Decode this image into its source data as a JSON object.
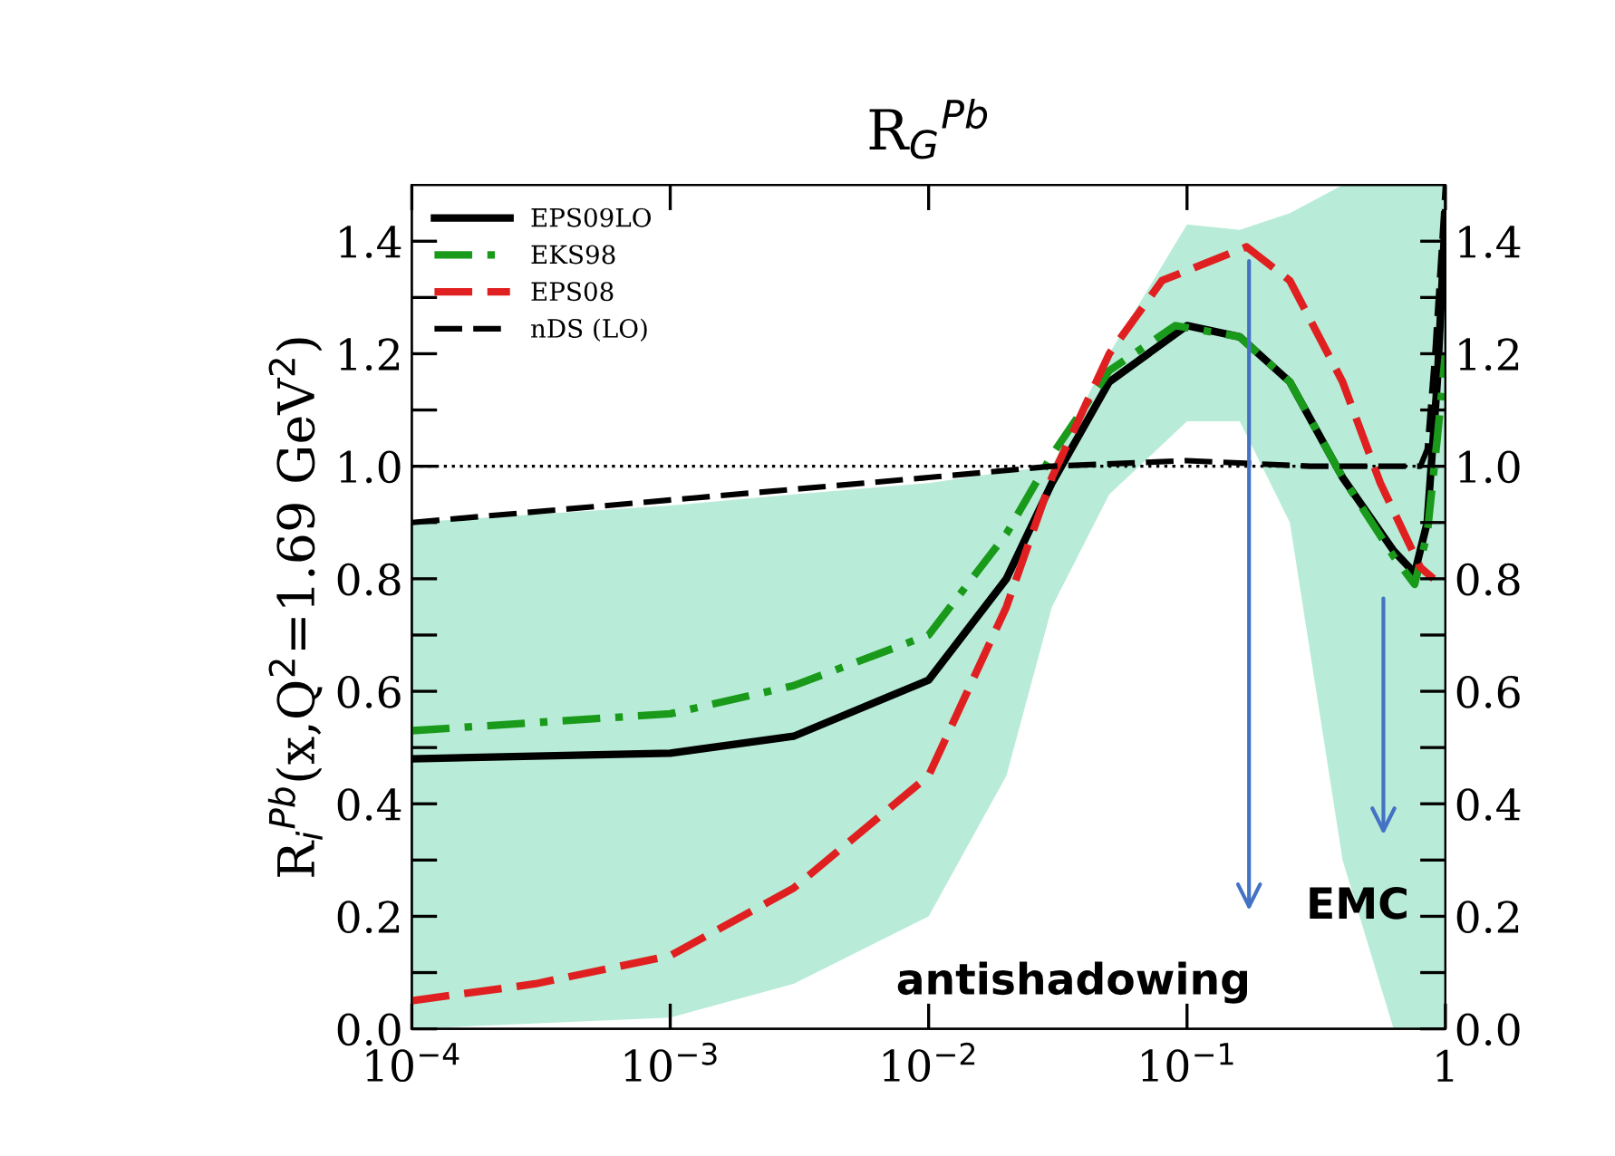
{
  "chart_data": {
    "type": "line",
    "title": "R$_{G}$$^{Pb}$",
    "ylabel": "R$_{i}$$^{Pb}$(x,Q$^{2}$=1.69 GeV$^{2}$)",
    "log": "x",
    "xlim": [
      0.0001,
      1
    ],
    "xticks": [
      {
        "value": 0.0001,
        "label": "10$^{−4}$"
      },
      {
        "value": 0.001,
        "label": "10$^{−3}$"
      },
      {
        "value": 0.01,
        "label": "10$^{−2}$"
      },
      {
        "value": 0.1,
        "label": "10$^{−1}$"
      },
      1
    ],
    "ylim": [
      0,
      1.5
    ],
    "yticks": [
      {
        "value": 0,
        "label": "0.0"
      },
      {
        "value": 0.1,
        "label": null
      },
      {
        "value": 0.2,
        "label": "0.2"
      },
      {
        "value": 0.3,
        "label": null
      },
      {
        "value": 0.4,
        "label": "0.4"
      },
      {
        "value": 0.5,
        "label": null
      },
      {
        "value": 0.6,
        "label": "0.6"
      },
      {
        "value": 0.7,
        "label": null
      },
      {
        "value": 0.8,
        "label": "0.8"
      },
      {
        "value": 0.9,
        "label": null
      },
      {
        "value": 1.0,
        "label": "1.0"
      },
      {
        "value": 1.1,
        "label": null
      },
      {
        "value": 1.2,
        "label": "1.2"
      },
      {
        "value": 1.3,
        "label": null
      },
      {
        "value": 1.4,
        "label": "1.4"
      }
    ],
    "y2lim": [
      0,
      1.5
    ],
    "y2ticks": [
      {
        "value": 0,
        "label": "0.0"
      },
      {
        "value": 0.1,
        "label": null
      },
      {
        "value": 0.2,
        "label": "0.2"
      },
      {
        "value": 0.3,
        "label": null
      },
      {
        "value": 0.4,
        "label": "0.4"
      },
      {
        "value": 0.5,
        "label": null
      },
      {
        "value": 0.6,
        "label": "0.6"
      },
      {
        "value": 0.7,
        "label": null
      },
      {
        "value": 0.8,
        "label": "0.8"
      },
      {
        "value": 0.9,
        "label": null
      },
      {
        "value": 1.0,
        "label": "1.0"
      },
      {
        "value": 1.1,
        "label": null
      },
      {
        "value": 1.2,
        "label": "1.2"
      },
      {
        "value": 1.3,
        "label": null
      },
      {
        "value": 1.4,
        "label": "1.4"
      }
    ],
    "grid": false,
    "legend": "top left",
    "series": [
      {
        "name": "EPS09LO",
        "color": "#000000",
        "line_style": "solid",
        "x": [
          0.0001,
          0.001,
          0.003,
          0.01,
          0.02,
          0.03,
          0.05,
          0.1,
          0.16,
          0.25,
          0.4,
          0.63,
          0.76,
          0.85,
          0.93,
          1
        ],
        "values": [
          0.48,
          0.49,
          0.52,
          0.62,
          0.8,
          0.97,
          1.15,
          1.25,
          1.23,
          1.15,
          0.98,
          0.85,
          0.81,
          0.9,
          1.15,
          1.45
        ],
        "lower": [
          0.0,
          0.02,
          0.08,
          0.2,
          0.45,
          0.75,
          0.95,
          1.08,
          1.08,
          0.9,
          0.3,
          0.0,
          0.0,
          0.0,
          0.0,
          0.0
        ],
        "upper": [
          0.9,
          0.93,
          0.95,
          0.97,
          0.99,
          1.0,
          1.2,
          1.43,
          1.42,
          1.45,
          1.5,
          1.5,
          1.5,
          1.5,
          1.5,
          1.5
        ]
      },
      {
        "name": "EKS98",
        "color": "#1a9a1a",
        "line_style": "dashdot",
        "x": [
          0.0001,
          0.001,
          0.003,
          0.01,
          0.02,
          0.03,
          0.05,
          0.09,
          0.16,
          0.25,
          0.4,
          0.63,
          0.76,
          0.85,
          0.93,
          1
        ],
        "values": [
          0.53,
          0.56,
          0.61,
          0.7,
          0.88,
          1.02,
          1.17,
          1.25,
          1.23,
          1.15,
          0.98,
          0.84,
          0.79,
          0.88,
          1.05,
          1.2
        ]
      },
      {
        "name": "EPS08",
        "color": "#e02020",
        "line_style": "dashed",
        "x": [
          0.0001,
          0.0003,
          0.001,
          0.003,
          0.01,
          0.02,
          0.03,
          0.05,
          0.08,
          0.17,
          0.25,
          0.4,
          0.56,
          0.8,
          0.9
        ],
        "values": [
          0.05,
          0.08,
          0.13,
          0.25,
          0.45,
          0.75,
          0.98,
          1.2,
          1.33,
          1.39,
          1.33,
          1.15,
          0.97,
          0.82,
          0.8
        ]
      },
      {
        "name": "nDS (LO)",
        "color": "#000000",
        "line_style": "dashed",
        "x": [
          0.0001,
          0.001,
          0.01,
          0.03,
          0.1,
          0.3,
          0.6,
          0.8,
          0.85,
          0.91,
          1
        ],
        "values": [
          0.9,
          0.94,
          0.98,
          1.0,
          1.01,
          1.0,
          1.0,
          1.0,
          1.03,
          1.2,
          1.5
        ]
      }
    ],
    "ref_lines": [
      {
        "axis": "y",
        "value": 1.0,
        "line_style": "dotted",
        "color": "#000000"
      }
    ],
    "annotations": [
      "antishadowing",
      "EMC"
    ]
  }
}
